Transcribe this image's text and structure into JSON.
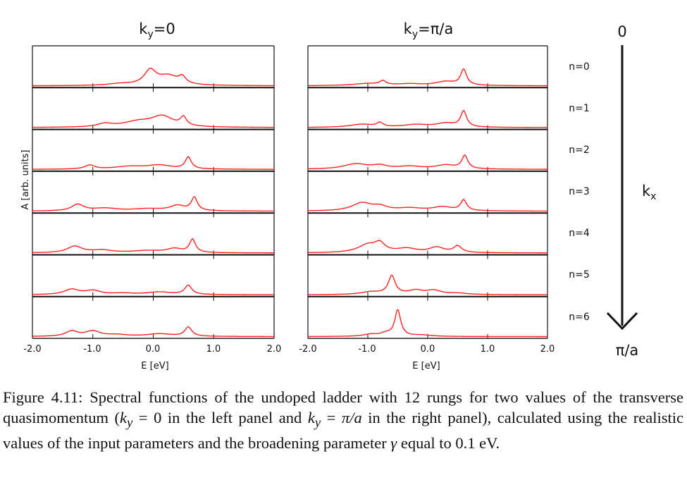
{
  "panels": [
    {
      "title": "k",
      "title_sub": "y",
      "title_rest": "=0"
    },
    {
      "title": "k",
      "title_sub": "y",
      "title_rest": "=π/a"
    }
  ],
  "ylabel": "A [arb. units]",
  "xlabel": "E [eV]",
  "x_ticks": [
    "-2.0",
    "-1.0",
    "0.0",
    "1.0",
    "2.0"
  ],
  "rows": [
    "n=0",
    "n=1",
    "n=2",
    "n=3",
    "n=4",
    "n=5",
    "n=6"
  ],
  "arrow": {
    "top": "0",
    "bottom": "π/a",
    "label": "k",
    "label_sub": "x"
  },
  "caption": {
    "lead": "Figure 4.11: Spectral functions of the undoped ladder with 12 rungs for two values of the transverse quasimomentum (",
    "k1": "k",
    "k1_sub": "y",
    "eq1": " = 0 in the left panel and ",
    "k2": "k",
    "k2_sub": "y",
    "eq2": " = ",
    "pi_a": "π/a",
    "mid": " in the right panel), calculated using the realistic values of the input parameters and the broadening parameter ",
    "gamma": "γ",
    "tail": " equal to 0.1 eV."
  },
  "chart_data": {
    "type": "line",
    "xlim": [
      -2.0,
      2.0
    ],
    "line_color": "#ff2020",
    "panels": [
      {
        "name": "left",
        "rows": [
          {
            "peaks": [
              [
                -0.55,
                0.06,
                0.25
              ],
              [
                -0.05,
                0.55,
                0.12
              ],
              [
                0.25,
                0.35,
                0.2
              ],
              [
                0.48,
                0.25,
                0.07
              ]
            ]
          },
          {
            "peaks": [
              [
                -0.8,
                0.12,
                0.15
              ],
              [
                -0.25,
                0.2,
                0.3
              ],
              [
                0.15,
                0.4,
                0.22
              ],
              [
                0.5,
                0.32,
                0.06
              ]
            ]
          },
          {
            "peaks": [
              [
                -1.05,
                0.15,
                0.1
              ],
              [
                -0.4,
                0.1,
                0.3
              ],
              [
                0.1,
                0.15,
                0.25
              ],
              [
                0.58,
                0.45,
                0.06
              ]
            ]
          },
          {
            "peaks": [
              [
                -1.25,
                0.25,
                0.12
              ],
              [
                -0.8,
                0.1,
                0.25
              ],
              [
                -0.1,
                0.08,
                0.3
              ],
              [
                0.4,
                0.2,
                0.15
              ],
              [
                0.68,
                0.5,
                0.06
              ]
            ]
          },
          {
            "peaks": [
              [
                -1.3,
                0.25,
                0.15
              ],
              [
                -0.85,
                0.1,
                0.2
              ],
              [
                -0.1,
                0.08,
                0.3
              ],
              [
                0.35,
                0.15,
                0.15
              ],
              [
                0.65,
                0.5,
                0.06
              ]
            ]
          },
          {
            "peaks": [
              [
                -1.35,
                0.2,
                0.15
              ],
              [
                -1.0,
                0.15,
                0.15
              ],
              [
                -0.5,
                0.05,
                0.2
              ],
              [
                0.1,
                0.1,
                0.25
              ],
              [
                0.58,
                0.35,
                0.07
              ]
            ]
          },
          {
            "peaks": [
              [
                -1.35,
                0.2,
                0.12
              ],
              [
                -1.0,
                0.2,
                0.15
              ],
              [
                -0.6,
                0.06,
                0.2
              ],
              [
                0.1,
                0.1,
                0.25
              ],
              [
                0.58,
                0.35,
                0.07
              ]
            ]
          }
        ]
      },
      {
        "name": "right",
        "rows": [
          {
            "peaks": [
              [
                -1.0,
                0.08,
                0.3
              ],
              [
                -0.75,
                0.15,
                0.06
              ],
              [
                -0.3,
                0.06,
                0.25
              ],
              [
                0.3,
                0.15,
                0.2
              ],
              [
                0.6,
                0.6,
                0.06
              ]
            ]
          },
          {
            "peaks": [
              [
                -1.1,
                0.12,
                0.25
              ],
              [
                -0.8,
                0.15,
                0.06
              ],
              [
                -0.2,
                0.1,
                0.25
              ],
              [
                0.3,
                0.15,
                0.2
              ],
              [
                0.6,
                0.6,
                0.06
              ]
            ]
          },
          {
            "peaks": [
              [
                -1.2,
                0.2,
                0.25
              ],
              [
                -0.8,
                0.12,
                0.15
              ],
              [
                -0.3,
                0.1,
                0.25
              ],
              [
                0.3,
                0.15,
                0.2
              ],
              [
                0.62,
                0.5,
                0.06
              ]
            ]
          },
          {
            "peaks": [
              [
                -1.1,
                0.3,
                0.2
              ],
              [
                -0.8,
                0.15,
                0.15
              ],
              [
                -0.3,
                0.1,
                0.25
              ],
              [
                0.25,
                0.15,
                0.2
              ],
              [
                0.6,
                0.4,
                0.06
              ]
            ]
          },
          {
            "peaks": [
              [
                -1.0,
                0.3,
                0.2
              ],
              [
                -0.8,
                0.3,
                0.1
              ],
              [
                -0.35,
                0.15,
                0.2
              ],
              [
                0.15,
                0.2,
                0.15
              ],
              [
                0.5,
                0.25,
                0.08
              ]
            ]
          },
          {
            "peaks": [
              [
                -0.95,
                0.1,
                0.2
              ],
              [
                -0.6,
                0.7,
                0.07
              ],
              [
                -0.2,
                0.15,
                0.15
              ],
              [
                0.1,
                0.15,
                0.15
              ],
              [
                0.5,
                0.05,
                0.2
              ]
            ]
          },
          {
            "peaks": [
              [
                -0.95,
                0.08,
                0.15
              ],
              [
                -0.7,
                0.1,
                0.1
              ],
              [
                -0.5,
                1.0,
                0.06
              ],
              [
                -0.1,
                0.05,
                0.2
              ]
            ]
          }
        ]
      }
    ]
  }
}
